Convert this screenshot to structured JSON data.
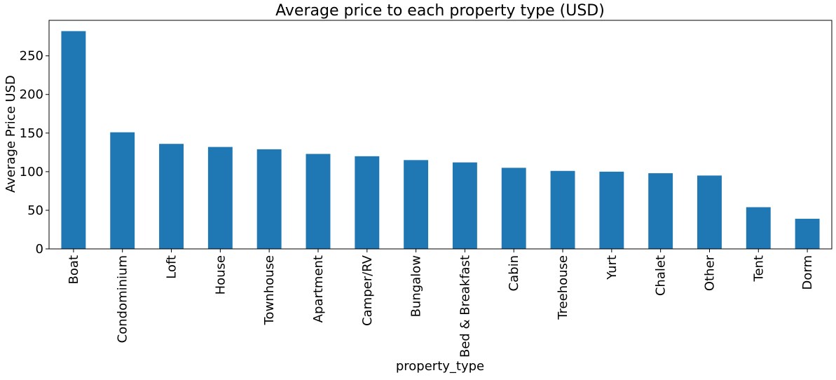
{
  "chart_data": {
    "type": "bar",
    "title": "Average price to each property type (USD)",
    "xlabel": "property_type",
    "ylabel": "Average Price USD",
    "categories": [
      "Boat",
      "Condominium",
      "Loft",
      "House",
      "Townhouse",
      "Apartment",
      "Camper/RV",
      "Bungalow",
      "Bed & Breakfast",
      "Cabin",
      "Treehouse",
      "Yurt",
      "Chalet",
      "Other",
      "Tent",
      "Dorm"
    ],
    "values": [
      282,
      151,
      136,
      132,
      129,
      123,
      120,
      115,
      112,
      105,
      101,
      100,
      98,
      95,
      54,
      39
    ],
    "ylim": [
      0,
      296
    ],
    "yticks": [
      0,
      50,
      100,
      150,
      200,
      250
    ],
    "grid": false,
    "bar_color": "#1f77b4"
  }
}
